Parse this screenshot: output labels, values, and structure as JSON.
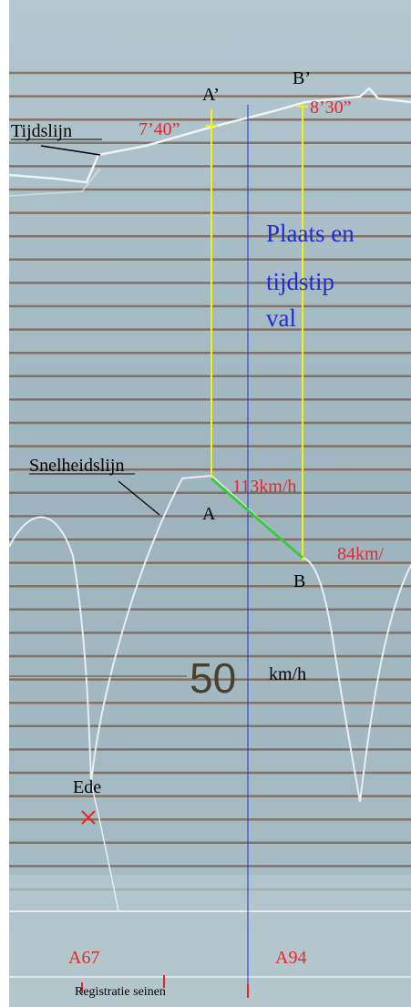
{
  "labels": {
    "a_prime": "A’",
    "b_prime": "B’",
    "time_a": "7’40”",
    "time_b": "8’30”",
    "time_line": "Tijdslijn",
    "fall_note": [
      "Plaats en",
      "tijdstip",
      "val"
    ],
    "speed_line": "Snelheidslijn",
    "speed_a": "113km/h",
    "point_a": "A",
    "point_b": "B",
    "speed_b": "84km/",
    "scale_value": "50",
    "scale_unit": "km/h",
    "station": "Ede",
    "signal_left": "A67",
    "signal_right": "A94",
    "signals_caption": "Registratie seinen"
  }
}
